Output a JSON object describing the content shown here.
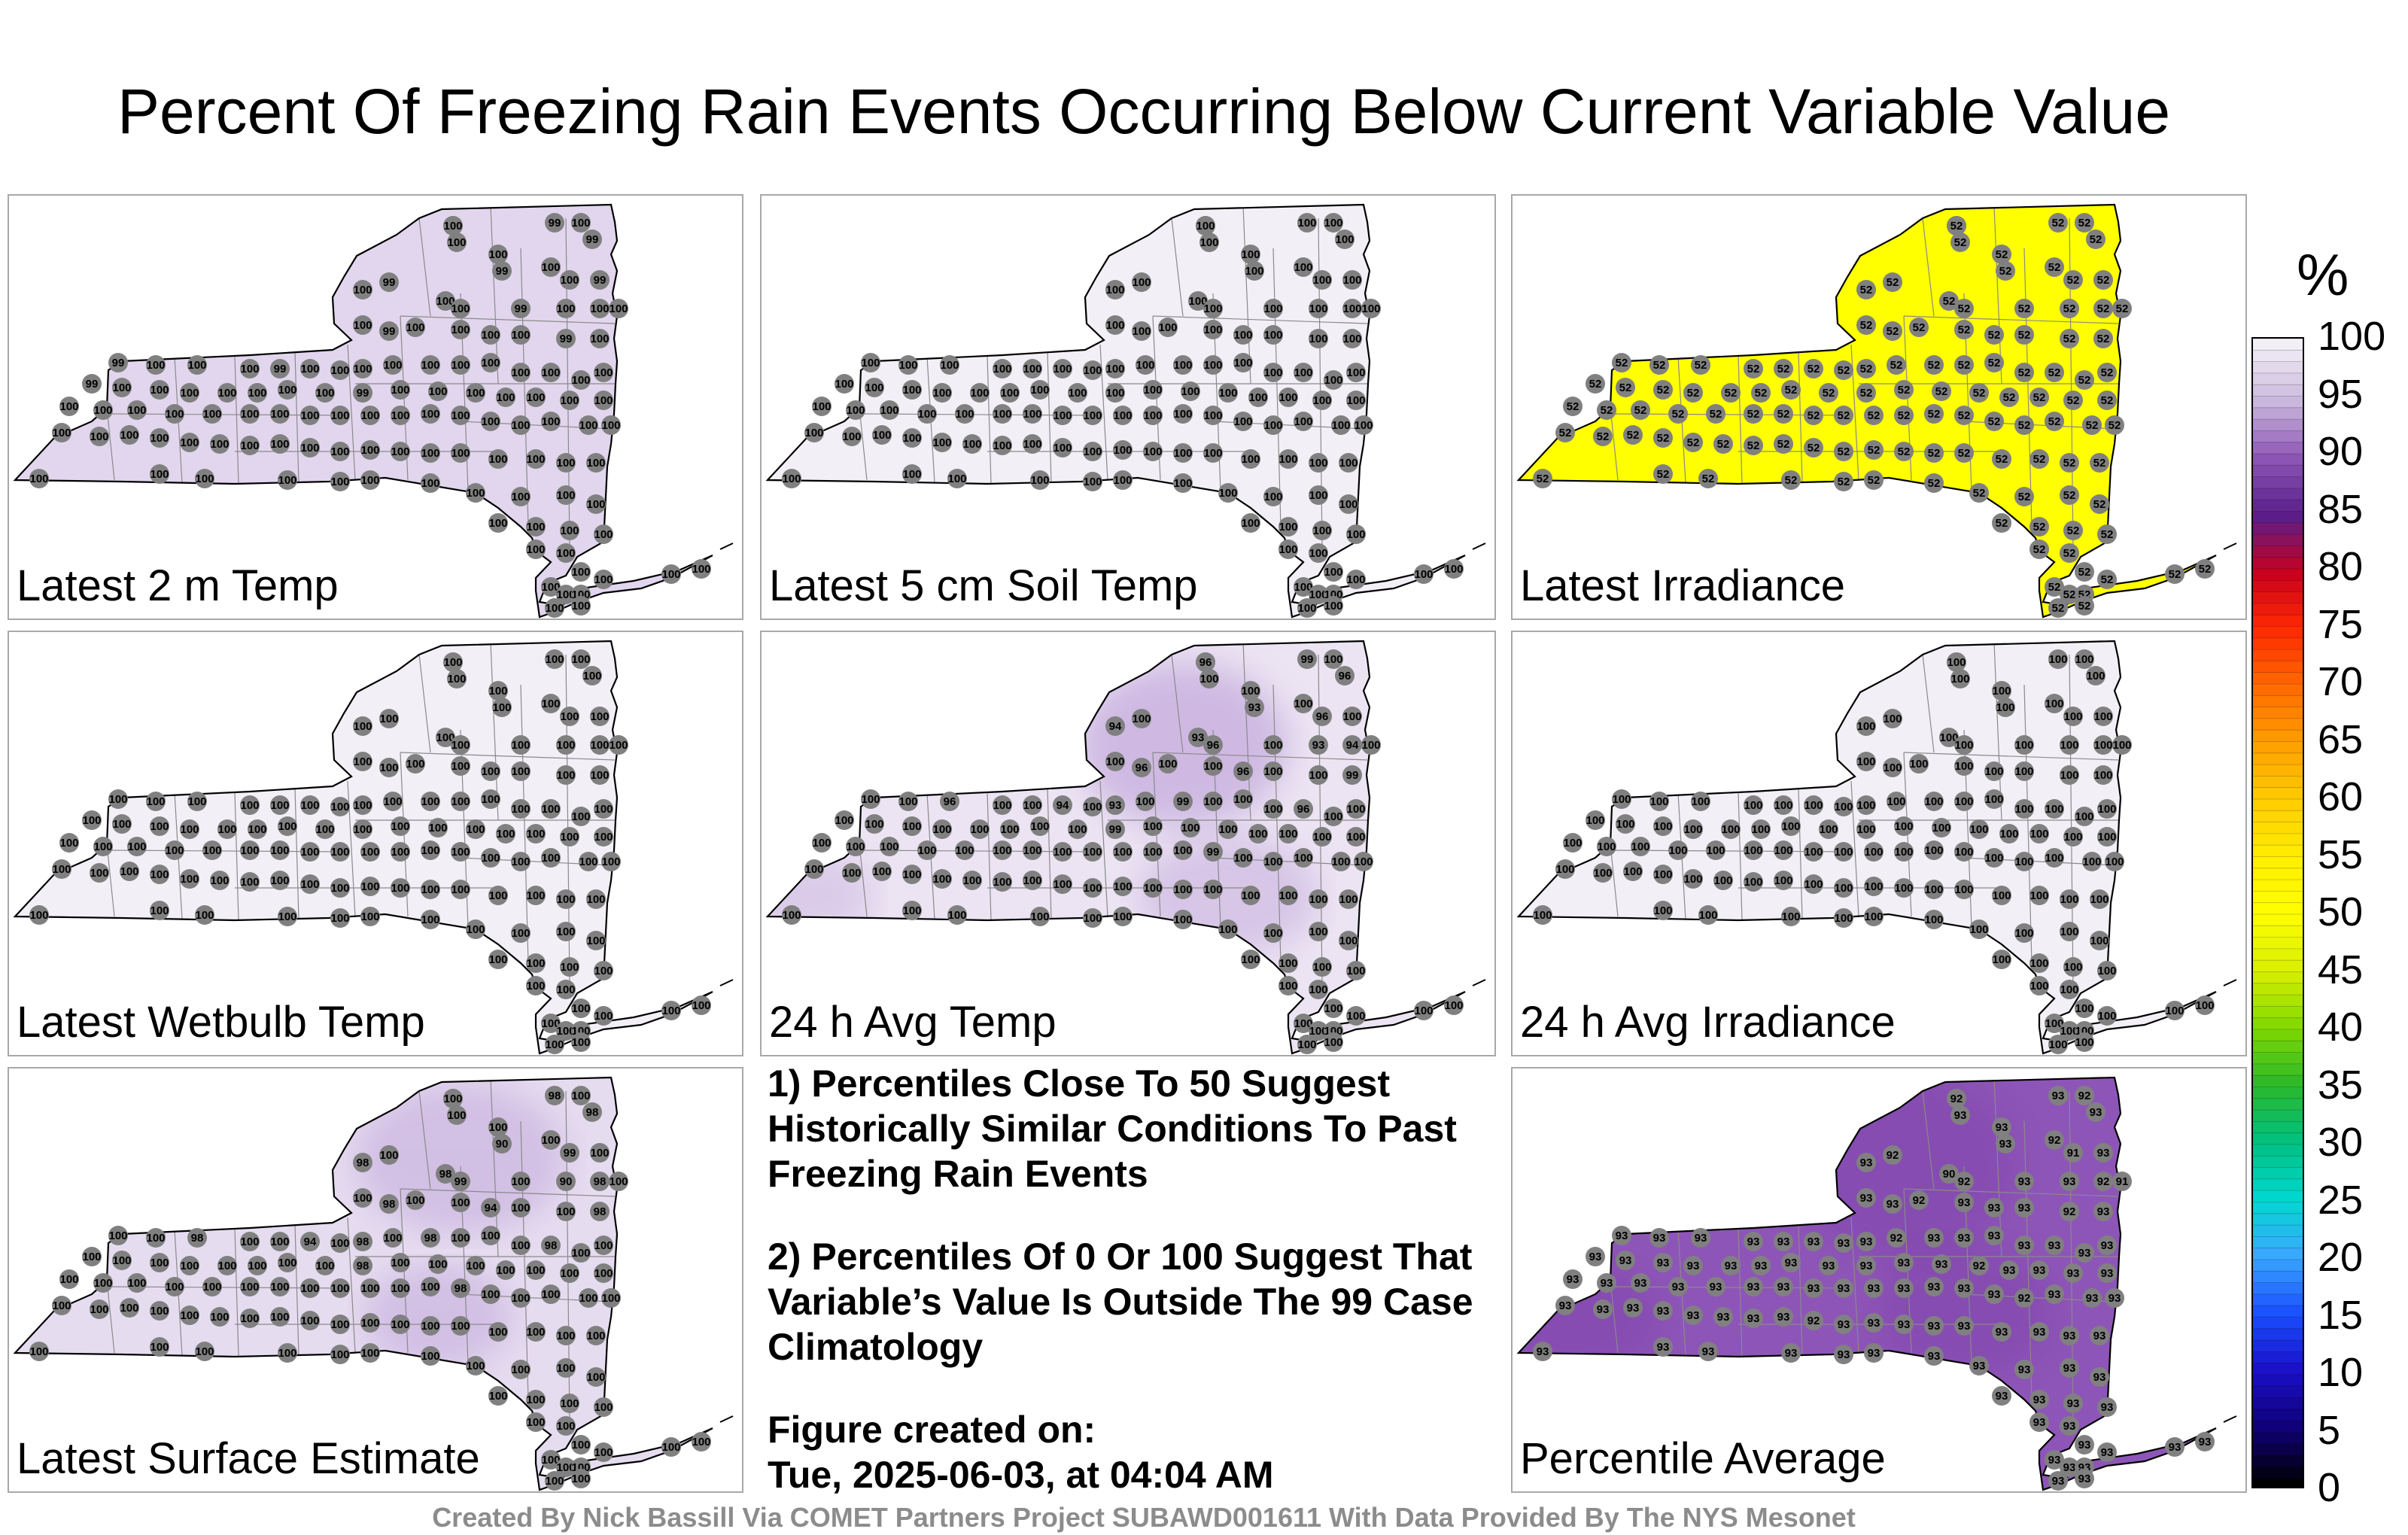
{
  "title": "Percent Of Freezing Rain Events Occurring Below Current Variable Value",
  "panels": [
    {
      "label": "Latest 2 m Temp",
      "fill": "#e2d6ee",
      "values": [
        100,
        100,
        99,
        100,
        99,
        100,
        99,
        100,
        100,
        99,
        100,
        99,
        100,
        100,
        99,
        100,
        100,
        100,
        100,
        99,
        100,
        100,
        100,
        100,
        99,
        100,
        99,
        100,
        100,
        100,
        99,
        100,
        100,
        100,
        100,
        100,
        100,
        100,
        100,
        100,
        100,
        100,
        99,
        100,
        100,
        100,
        100,
        100,
        100,
        100,
        99,
        100,
        100,
        100,
        100,
        100,
        100,
        100,
        100,
        100,
        100,
        100,
        100,
        100,
        100,
        100,
        100,
        100,
        100,
        100,
        100,
        100,
        100,
        100,
        100,
        100,
        100,
        100,
        100,
        100,
        100,
        100,
        100,
        100,
        100,
        100,
        100,
        100,
        100,
        100,
        100,
        100,
        100,
        100,
        100,
        100,
        100,
        100,
        100,
        100,
        100,
        100,
        100,
        100,
        100,
        100,
        100,
        100,
        100,
        100,
        100,
        100,
        100,
        100,
        100,
        100,
        100,
        100,
        100,
        100,
        100
      ]
    },
    {
      "label": "Latest 5 cm Soil Temp",
      "fill": "#f3eff7",
      "values": [
        100,
        100,
        100,
        100,
        100,
        100,
        100,
        100,
        100,
        100,
        100,
        100,
        100,
        100,
        100,
        100,
        100,
        100,
        100,
        100,
        100,
        100,
        100,
        100,
        100,
        100,
        100,
        100,
        100,
        100,
        100,
        100,
        100,
        100,
        100,
        100,
        100,
        100,
        100,
        100,
        100,
        100,
        100,
        100,
        100,
        100,
        100,
        100,
        100,
        100,
        100,
        100,
        100,
        100,
        100,
        100,
        100,
        100,
        100,
        100,
        100,
        100,
        100,
        100,
        100,
        100,
        100,
        100,
        100,
        100,
        100,
        100,
        100,
        100,
        100,
        100,
        100,
        100,
        100,
        100,
        100,
        100,
        100,
        100,
        100,
        100,
        100,
        100,
        100,
        100,
        100,
        100,
        100,
        100,
        100,
        100,
        100,
        100,
        100,
        100,
        100,
        100,
        100,
        100,
        100,
        100,
        100,
        100,
        100,
        100,
        100,
        100,
        100,
        100,
        100,
        100,
        100,
        100,
        100,
        100,
        100
      ]
    },
    {
      "label": "Latest Irradiance",
      "fill": "#ffff00",
      "values": [
        52,
        52,
        52,
        52,
        52,
        52,
        52,
        52,
        52,
        52,
        52,
        52,
        52,
        52,
        52,
        52,
        52,
        52,
        52,
        52,
        52,
        52,
        52,
        52,
        52,
        52,
        52,
        52,
        52,
        52,
        52,
        52,
        52,
        52,
        52,
        52,
        52,
        52,
        52,
        52,
        52,
        52,
        52,
        52,
        52,
        52,
        52,
        52,
        52,
        52,
        52,
        52,
        52,
        52,
        52,
        52,
        52,
        52,
        52,
        52,
        52,
        52,
        52,
        52,
        52,
        52,
        52,
        52,
        52,
        52,
        52,
        52,
        52,
        52,
        52,
        52,
        52,
        52,
        52,
        52,
        52,
        52,
        52,
        52,
        52,
        52,
        52,
        52,
        52,
        52,
        52,
        52,
        52,
        52,
        52,
        52,
        52,
        52,
        52,
        52,
        52,
        52,
        52,
        52,
        52,
        52,
        52,
        52,
        52,
        52,
        52,
        52,
        52,
        52,
        52,
        52,
        52,
        52,
        52,
        52,
        52
      ]
    },
    {
      "label": "Latest Wetbulb Temp",
      "fill": "#f3eff7",
      "values": [
        100,
        100,
        100,
        100,
        100,
        100,
        100,
        100,
        100,
        100,
        100,
        100,
        100,
        100,
        100,
        100,
        100,
        100,
        100,
        100,
        100,
        100,
        100,
        100,
        100,
        100,
        100,
        100,
        100,
        100,
        100,
        100,
        100,
        100,
        100,
        100,
        100,
        100,
        100,
        100,
        100,
        100,
        100,
        100,
        100,
        100,
        100,
        100,
        100,
        100,
        100,
        100,
        100,
        100,
        100,
        100,
        100,
        100,
        100,
        100,
        100,
        100,
        100,
        100,
        100,
        100,
        100,
        100,
        100,
        100,
        100,
        100,
        100,
        100,
        100,
        100,
        100,
        100,
        100,
        100,
        100,
        100,
        100,
        100,
        100,
        100,
        100,
        100,
        100,
        100,
        100,
        100,
        100,
        100,
        100,
        100,
        100,
        100,
        100,
        100,
        100,
        100,
        100,
        100,
        100,
        100,
        100,
        100,
        100,
        100,
        100,
        100,
        100,
        100,
        100,
        100,
        100,
        100,
        100,
        100,
        100
      ]
    },
    {
      "label": "24 h Avg Temp",
      "fill": "#ece4f3",
      "values": [
        100,
        100,
        99,
        100,
        96,
        100,
        93,
        100,
        96,
        100,
        94,
        100,
        93,
        96,
        100,
        93,
        94,
        100,
        100,
        96,
        100,
        100,
        96,
        100,
        100,
        99,
        100,
        100,
        96,
        100,
        100,
        94,
        100,
        93,
        100,
        99,
        100,
        100,
        100,
        96,
        100,
        100,
        100,
        100,
        100,
        100,
        100,
        100,
        100,
        100,
        99,
        100,
        100,
        100,
        100,
        100,
        100,
        100,
        100,
        100,
        100,
        100,
        100,
        100,
        100,
        100,
        100,
        100,
        100,
        100,
        99,
        100,
        100,
        100,
        100,
        100,
        100,
        100,
        100,
        100,
        100,
        100,
        100,
        100,
        100,
        100,
        100,
        100,
        100,
        100,
        100,
        100,
        100,
        100,
        100,
        100,
        100,
        100,
        100,
        100,
        100,
        100,
        100,
        100,
        100,
        100,
        100,
        100,
        100,
        100,
        100,
        100,
        100,
        100,
        100,
        100,
        100,
        100,
        100,
        100,
        96
      ]
    },
    {
      "label": "24 h Avg Irradiance",
      "fill": "#f3eff7",
      "values": [
        100,
        100,
        100,
        100,
        100,
        100,
        100,
        100,
        100,
        100,
        100,
        100,
        100,
        100,
        100,
        100,
        100,
        100,
        100,
        100,
        100,
        100,
        100,
        100,
        100,
        100,
        100,
        100,
        100,
        100,
        100,
        100,
        100,
        100,
        100,
        100,
        100,
        100,
        100,
        100,
        100,
        100,
        100,
        100,
        100,
        100,
        100,
        100,
        100,
        100,
        100,
        100,
        100,
        100,
        100,
        100,
        100,
        100,
        100,
        100,
        100,
        100,
        100,
        100,
        100,
        100,
        100,
        100,
        100,
        100,
        100,
        100,
        100,
        100,
        100,
        100,
        100,
        100,
        100,
        100,
        100,
        100,
        100,
        100,
        100,
        100,
        100,
        100,
        100,
        100,
        100,
        100,
        100,
        100,
        100,
        100,
        100,
        100,
        100,
        100,
        100,
        100,
        100,
        100,
        100,
        100,
        100,
        100,
        100,
        100,
        100,
        100,
        100,
        100,
        100,
        100,
        100,
        100,
        100,
        100,
        100
      ]
    },
    {
      "label": "Latest Surface Estimate",
      "fill": "#e6dcf0",
      "values": [
        100,
        100,
        98,
        100,
        98,
        100,
        90,
        100,
        99,
        100,
        98,
        100,
        98,
        99,
        100,
        90,
        98,
        100,
        100,
        98,
        100,
        100,
        94,
        100,
        100,
        98,
        100,
        100,
        98,
        100,
        100,
        94,
        100,
        98,
        100,
        98,
        100,
        100,
        100,
        98,
        100,
        100,
        100,
        100,
        100,
        100,
        100,
        100,
        100,
        100,
        98,
        100,
        100,
        100,
        100,
        100,
        100,
        100,
        100,
        100,
        100,
        100,
        100,
        100,
        100,
        100,
        100,
        100,
        100,
        100,
        98,
        100,
        100,
        100,
        100,
        100,
        100,
        100,
        100,
        100,
        100,
        100,
        100,
        100,
        100,
        100,
        100,
        100,
        100,
        100,
        100,
        100,
        100,
        100,
        100,
        100,
        100,
        100,
        100,
        100,
        100,
        100,
        100,
        100,
        100,
        100,
        100,
        100,
        100,
        100,
        100,
        100,
        100,
        100,
        100,
        100,
        100,
        100,
        100,
        100,
        100
      ]
    },
    {
      "label": "Percentile Average",
      "fill": "#8e55b8",
      "values": [
        93,
        93,
        93,
        92,
        93,
        93,
        93,
        92,
        91,
        93,
        93,
        92,
        90,
        92,
        93,
        93,
        92,
        91,
        93,
        93,
        92,
        93,
        93,
        93,
        92,
        93,
        93,
        93,
        93,
        93,
        93,
        93,
        93,
        93,
        92,
        93,
        93,
        93,
        93,
        93,
        93,
        93,
        93,
        93,
        93,
        93,
        93,
        93,
        93,
        93,
        93,
        93,
        93,
        92,
        93,
        93,
        93,
        93,
        93,
        93,
        93,
        93,
        93,
        93,
        93,
        93,
        93,
        93,
        93,
        93,
        93,
        93,
        92,
        93,
        93,
        93,
        93,
        93,
        93,
        93,
        93,
        93,
        93,
        93,
        92,
        93,
        93,
        93,
        93,
        93,
        93,
        93,
        93,
        93,
        93,
        93,
        93,
        93,
        93,
        93,
        93,
        93,
        93,
        93,
        93,
        93,
        93,
        93,
        93,
        93,
        93,
        93,
        93,
        93,
        93,
        93,
        93,
        93,
        93,
        93,
        92
      ]
    }
  ],
  "notes": {
    "note1": "1) Percentiles Close To 50 Suggest Historically Similar Conditions To Past Freezing Rain Events",
    "note2": "2) Percentiles Of 0 Or 100 Suggest That Variable’s Value Is Outside The 99 Case Climatology",
    "created_label": "Figure created on:",
    "created_value": "Tue, 2025-06-03, at 04:04 AM"
  },
  "colorbar": {
    "unit": "%",
    "ticks": [
      "100",
      "95",
      "90",
      "85",
      "80",
      "75",
      "70",
      "65",
      "60",
      "55",
      "50",
      "45",
      "40",
      "35",
      "30",
      "25",
      "20",
      "15",
      "10",
      "5",
      "0"
    ],
    "stops": [
      "#f3eff7",
      "#cbb8dd",
      "#8d55b6",
      "#5a1e8c",
      "#c8001e",
      "#ff2a00",
      "#ff6a00",
      "#ff9f00",
      "#ffcc00",
      "#ffee00",
      "#ffff00",
      "#d8f000",
      "#80d800",
      "#2bb82b",
      "#00c080",
      "#00d8d0",
      "#3aa8ff",
      "#1a50ff",
      "#1a10c8",
      "#10007a",
      "#000000"
    ]
  },
  "credit": "Created By Nick Bassill Via COMET Partners Project SUBAWD001611 With Data Provided By The NYS Mesonet"
}
